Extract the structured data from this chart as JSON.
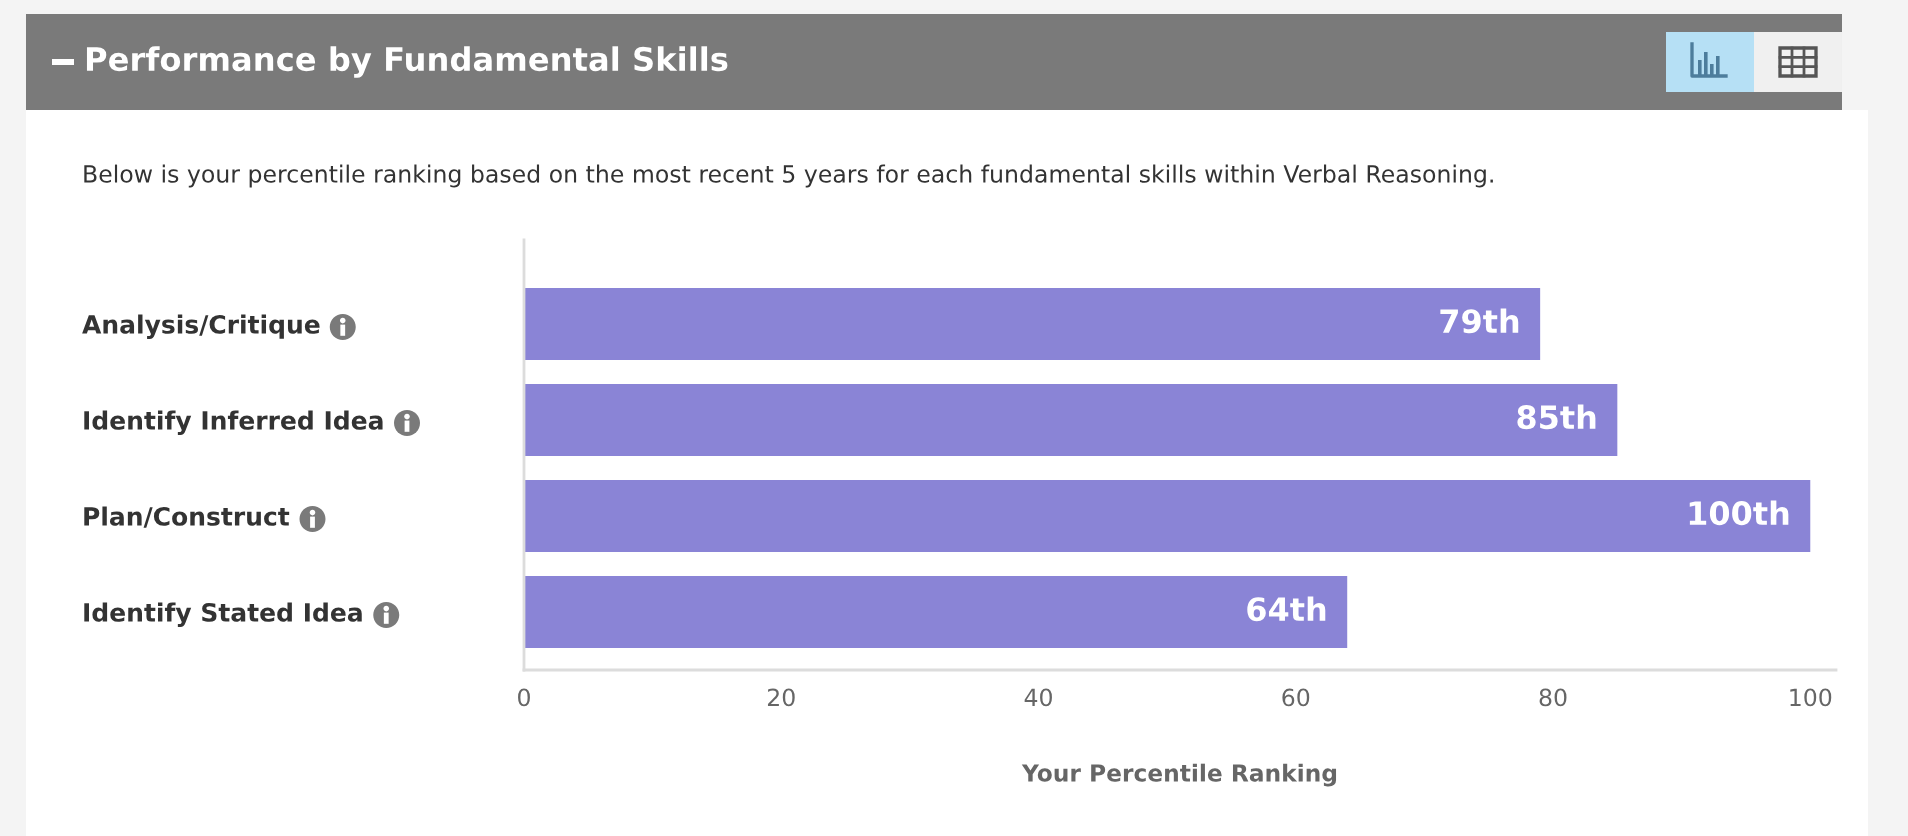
{
  "chart_data": {
    "type": "bar",
    "orientation": "horizontal",
    "title": "Performance by Fundamental Skills",
    "subtitle": "Below is your percentile ranking based on the most recent 5 years for each fundamental skills within Verbal Reasoning.",
    "xlabel": "Your Percentile Ranking",
    "categories": [
      "Analysis/Critique",
      "Identify Inferred Idea",
      "Plan/Construct",
      "Identify Stated Idea"
    ],
    "values": [
      79,
      85,
      100,
      64
    ],
    "color": "#8a84d6",
    "value_labels": [
      "79th",
      "85th",
      "100th",
      "64th"
    ],
    "xlim": [
      0,
      102
    ],
    "xticks": [
      0,
      20,
      40,
      60,
      80,
      100
    ]
  }
}
